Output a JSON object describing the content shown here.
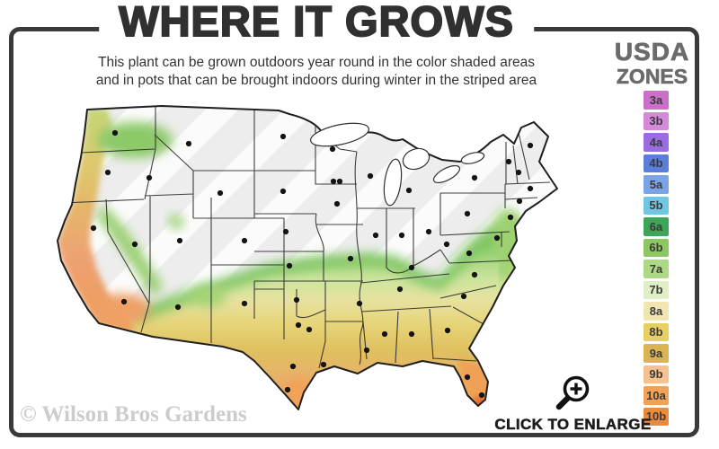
{
  "header": {
    "title": "WHERE IT GROWS",
    "subtitle_line1": "This plant can be grown outdoors year round in the color shaded areas",
    "subtitle_line2": "and in pots that can be brought indoors during winter in the striped area"
  },
  "legend": {
    "title_line1": "USDA",
    "title_line2": "ZONES",
    "zones": [
      {
        "label": "3a",
        "color": "#cb70c8"
      },
      {
        "label": "3b",
        "color": "#d489da"
      },
      {
        "label": "4a",
        "color": "#9a6ce2"
      },
      {
        "label": "4b",
        "color": "#5b7ed8"
      },
      {
        "label": "5a",
        "color": "#7aa3e8"
      },
      {
        "label": "5b",
        "color": "#6fc7e4"
      },
      {
        "label": "6a",
        "color": "#3ba657"
      },
      {
        "label": "6b",
        "color": "#8cc763"
      },
      {
        "label": "7a",
        "color": "#add884"
      },
      {
        "label": "7b",
        "color": "#dfeec4"
      },
      {
        "label": "8a",
        "color": "#f1e5b1"
      },
      {
        "label": "8b",
        "color": "#e8cf62"
      },
      {
        "label": "9a",
        "color": "#dab452"
      },
      {
        "label": "9b",
        "color": "#f5c28f"
      },
      {
        "label": "10a",
        "color": "#f1a256"
      },
      {
        "label": "10b",
        "color": "#e98a3c"
      }
    ]
  },
  "map": {
    "striped_area_color": "#ededed",
    "stripe_overlay_color": "#ffffff",
    "outline_color": "#1f1f1f",
    "state_line_color": "#2b2b2b",
    "city_dot_color": "#141414"
  },
  "footer": {
    "watermark": "© Wilson Bros Gardens",
    "cta_label": "CLICK TO ENLARGE"
  }
}
